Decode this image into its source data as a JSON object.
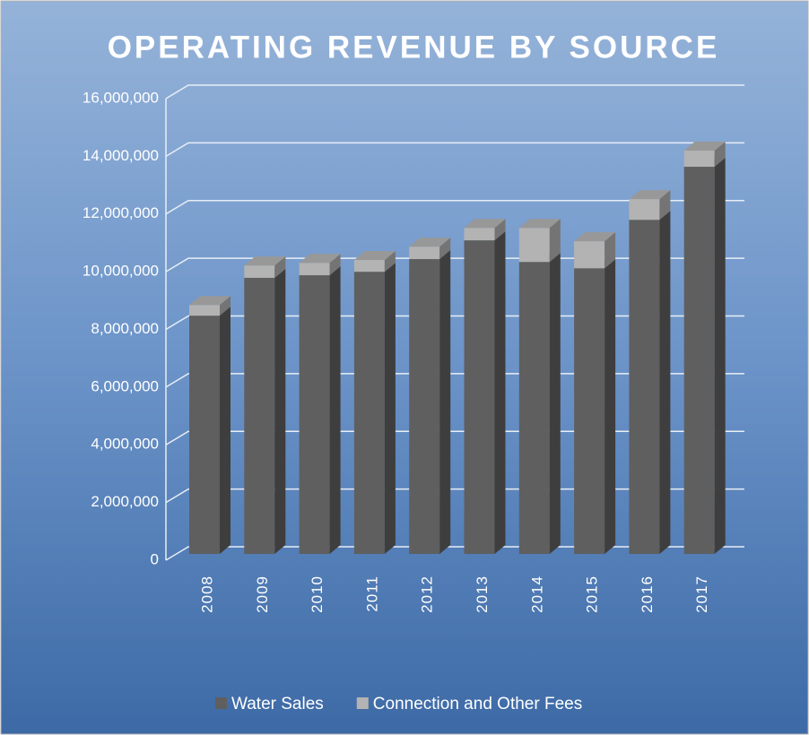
{
  "chart_data": {
    "type": "bar3d_stacked",
    "title": "OPERATING REVENUE BY SOURCE",
    "categories": [
      "2008",
      "2009",
      "2010",
      "2011",
      "2012",
      "2013",
      "2014",
      "2015",
      "2016",
      "2017"
    ],
    "series": [
      {
        "name": "Water Sales",
        "color": "#5f5f5f",
        "values": [
          8260000,
          9570000,
          9660000,
          9780000,
          10220000,
          10870000,
          10120000,
          9900000,
          11580000,
          13420000
        ]
      },
      {
        "name": "Connection and Other Fees",
        "color": "#b3b3b3",
        "values": [
          370000,
          430000,
          430000,
          410000,
          430000,
          430000,
          1180000,
          940000,
          720000,
          560000
        ]
      }
    ],
    "ylim": [
      0,
      16000000
    ],
    "yticks": [
      0,
      {
        "value": 2000000,
        "label": "2,000,000"
      },
      {
        "value": 4000000,
        "label": "4,000,000"
      },
      {
        "value": 6000000,
        "label": "6,000,000"
      },
      {
        "value": 8000000,
        "label": "8,000,000"
      },
      {
        "value": 10000000,
        "label": "10,000,000"
      },
      {
        "value": 12000000,
        "label": "12,000,000"
      },
      {
        "value": 14000000,
        "label": "14,000,000"
      },
      {
        "value": 16000000,
        "label": "16,000,000"
      }
    ],
    "grid": true,
    "legend": "bottom"
  }
}
